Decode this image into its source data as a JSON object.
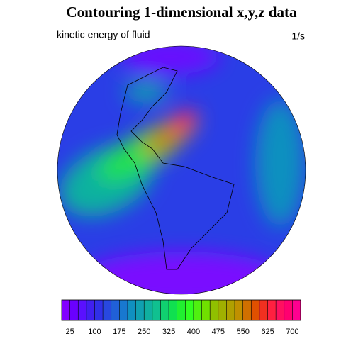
{
  "chart_data": {
    "type": "contour-map",
    "title": "Contouring 1-dimensional x,y,z data",
    "left_string": "kinetic energy of fluid",
    "right_string": "1/s",
    "levels": [
      25,
      50,
      75,
      100,
      125,
      150,
      175,
      200,
      225,
      250,
      275,
      300,
      325,
      350,
      375,
      400,
      425,
      450,
      475,
      500,
      525,
      550,
      575,
      600,
      625,
      650,
      675,
      700
    ],
    "label_every": 3,
    "colors": [
      "#8200ff",
      "#6a00ff",
      "#5a10ff",
      "#4020f0",
      "#3030e8",
      "#2848e0",
      "#2060d8",
      "#1878d0",
      "#1090c0",
      "#10a0b0",
      "#10b0a0",
      "#10c090",
      "#10d070",
      "#10e050",
      "#20f030",
      "#30ff20",
      "#50f010",
      "#70e000",
      "#90c000",
      "#a0b000",
      "#b0a000",
      "#c09000",
      "#d07000",
      "#e05000",
      "#f03020",
      "#ff2040",
      "#ff1060",
      "#ff0070",
      "#ff0090"
    ]
  }
}
